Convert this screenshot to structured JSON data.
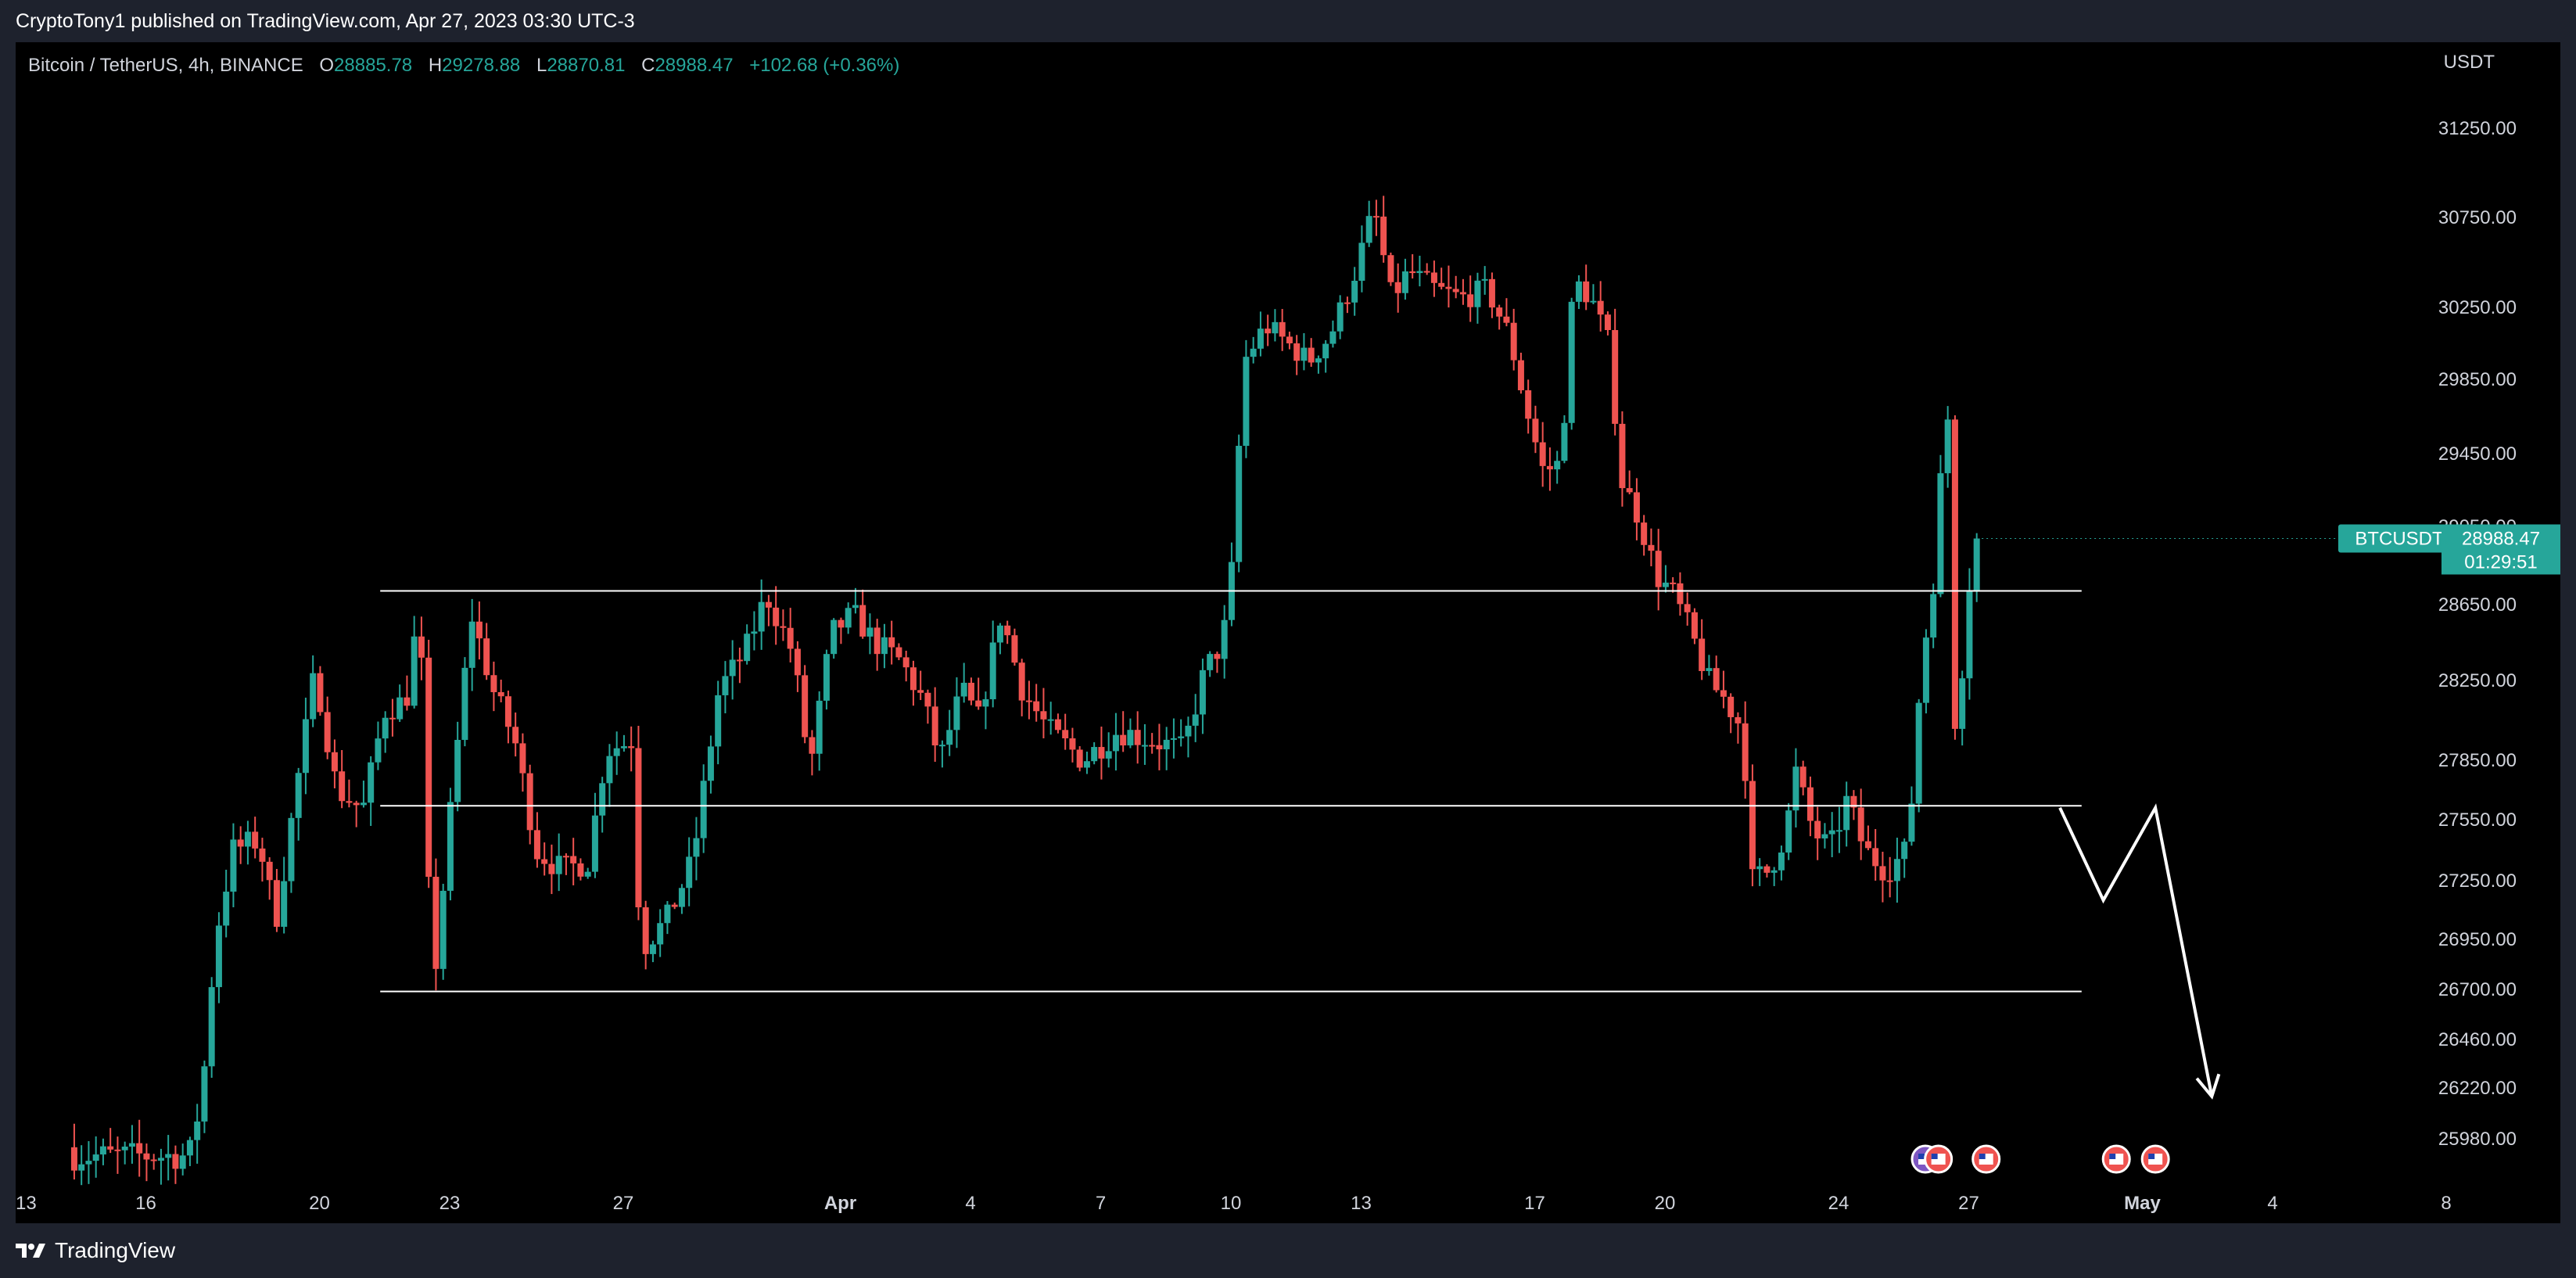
{
  "header": {
    "published_text": "CryptoTony1 published on TradingView.com, Apr 27, 2023 03:30 UTC-3"
  },
  "legend": {
    "symbol": "Bitcoin / TetherUS, 4h, BINANCE",
    "open_label": "O",
    "open": "28885.78",
    "high_label": "H",
    "high": "29278.88",
    "low_label": "L",
    "low": "28870.81",
    "close_label": "C",
    "close": "28988.47",
    "change": "+102.68 (+0.36%)"
  },
  "price_axis": {
    "currency": "USDT"
  },
  "last_price": {
    "symbol_tag": "BTCUSDT",
    "price": "28988.47",
    "countdown": "01:29:51"
  },
  "footer": {
    "brand": "TradingView"
  },
  "colors": {
    "up": "#26a69a",
    "down": "#ef5350",
    "lines": "#ffffff",
    "background": "#000000",
    "frame": "#1e222d"
  },
  "chart_data": {
    "type": "candlestick",
    "timeframe": "4h",
    "y_ticks": [
      31250,
      30750,
      30250,
      29850,
      29450,
      29050,
      28650,
      28250,
      27850,
      27550,
      27250,
      26950,
      26700,
      26460,
      26220,
      25980
    ],
    "y_tick_labels": [
      "31250.00",
      "30750.00",
      "30250.00",
      "29850.00",
      "29450.00",
      "29050.00",
      "28650.00",
      "28250.00",
      "27850.00",
      "27550.00",
      "27250.00",
      "26950.00",
      "26700.00",
      "26460.00",
      "26220.00",
      "25980.00"
    ],
    "x_ticks": [
      {
        "label": "13",
        "day": 13
      },
      {
        "label": "16",
        "day": 16
      },
      {
        "label": "20",
        "day": 20
      },
      {
        "label": "23",
        "day": 23
      },
      {
        "label": "27",
        "day": 27
      },
      {
        "label": "Apr",
        "day": 32,
        "bold": true
      },
      {
        "label": "4",
        "day": 35
      },
      {
        "label": "7",
        "day": 38
      },
      {
        "label": "10",
        "day": 41
      },
      {
        "label": "13",
        "day": 44
      },
      {
        "label": "17",
        "day": 48
      },
      {
        "label": "20",
        "day": 51
      },
      {
        "label": "24",
        "day": 55
      },
      {
        "label": "27",
        "day": 58
      },
      {
        "label": "May",
        "day": 62,
        "bold": true
      },
      {
        "label": "4",
        "day": 65
      },
      {
        "label": "8",
        "day": 69
      }
    ],
    "x_range_days": [
      13,
      71
    ],
    "horizontal_levels": [
      {
        "price": 28720,
        "from_day": 21.4,
        "to_day": 60.6
      },
      {
        "price": 27620,
        "from_day": 21.4,
        "to_day": 60.6
      },
      {
        "price": 26690,
        "from_day": 21.4,
        "to_day": 60.6
      }
    ],
    "projection_path": [
      {
        "day": 60.1,
        "price": 27610
      },
      {
        "day": 61.1,
        "price": 27150
      },
      {
        "day": 62.3,
        "price": 27610
      },
      {
        "day": 63.6,
        "price": 26180
      }
    ],
    "anchors": [
      {
        "day": 13.0,
        "price": 25900
      },
      {
        "day": 14.3,
        "price": 25900
      },
      {
        "day": 17.0,
        "price": 25900
      },
      {
        "day": 17.3,
        "price": 26200
      },
      {
        "day": 17.6,
        "price": 26950
      },
      {
        "day": 18.0,
        "price": 27400
      },
      {
        "day": 18.6,
        "price": 27450
      },
      {
        "day": 19.0,
        "price": 27050
      },
      {
        "day": 19.5,
        "price": 27750
      },
      {
        "day": 19.9,
        "price": 28300
      },
      {
        "day": 20.4,
        "price": 27700
      },
      {
        "day": 21.0,
        "price": 27600
      },
      {
        "day": 21.5,
        "price": 28100
      },
      {
        "day": 22.0,
        "price": 28150
      },
      {
        "day": 22.3,
        "price": 28650
      },
      {
        "day": 22.6,
        "price": 26650
      },
      {
        "day": 23.0,
        "price": 27550
      },
      {
        "day": 23.5,
        "price": 28600
      },
      {
        "day": 24.0,
        "price": 28200
      },
      {
        "day": 24.5,
        "price": 27950
      },
      {
        "day": 25.0,
        "price": 27400
      },
      {
        "day": 25.6,
        "price": 27300
      },
      {
        "day": 26.2,
        "price": 27350
      },
      {
        "day": 26.6,
        "price": 27900
      },
      {
        "day": 27.2,
        "price": 27950
      },
      {
        "day": 27.4,
        "price": 26900
      },
      {
        "day": 28.0,
        "price": 27050
      },
      {
        "day": 28.6,
        "price": 27350
      },
      {
        "day": 29.2,
        "price": 28200
      },
      {
        "day": 29.8,
        "price": 28400
      },
      {
        "day": 30.3,
        "price": 28700
      },
      {
        "day": 30.9,
        "price": 28400
      },
      {
        "day": 31.3,
        "price": 27800
      },
      {
        "day": 31.8,
        "price": 28500
      },
      {
        "day": 32.3,
        "price": 28600
      },
      {
        "day": 32.8,
        "price": 28450
      },
      {
        "day": 33.4,
        "price": 28350
      },
      {
        "day": 33.9,
        "price": 28150
      },
      {
        "day": 34.3,
        "price": 27850
      },
      {
        "day": 34.8,
        "price": 28200
      },
      {
        "day": 35.2,
        "price": 28050
      },
      {
        "day": 35.7,
        "price": 28600
      },
      {
        "day": 36.2,
        "price": 28200
      },
      {
        "day": 36.8,
        "price": 28000
      },
      {
        "day": 37.6,
        "price": 27850
      },
      {
        "day": 38.4,
        "price": 28000
      },
      {
        "day": 39.2,
        "price": 27950
      },
      {
        "day": 39.9,
        "price": 27900
      },
      {
        "day": 40.4,
        "price": 28300
      },
      {
        "day": 40.8,
        "price": 28450
      },
      {
        "day": 41.0,
        "price": 28750
      },
      {
        "day": 41.3,
        "price": 29950
      },
      {
        "day": 41.8,
        "price": 30150
      },
      {
        "day": 42.3,
        "price": 30050
      },
      {
        "day": 42.8,
        "price": 29950
      },
      {
        "day": 43.3,
        "price": 30100
      },
      {
        "day": 43.8,
        "price": 30400
      },
      {
        "day": 44.3,
        "price": 30800
      },
      {
        "day": 44.7,
        "price": 30300
      },
      {
        "day": 45.1,
        "price": 30450
      },
      {
        "day": 45.7,
        "price": 30350
      },
      {
        "day": 46.3,
        "price": 30300
      },
      {
        "day": 46.9,
        "price": 30350
      },
      {
        "day": 47.4,
        "price": 30100
      },
      {
        "day": 47.8,
        "price": 29700
      },
      {
        "day": 48.2,
        "price": 29350
      },
      {
        "day": 48.6,
        "price": 29400
      },
      {
        "day": 48.9,
        "price": 30400
      },
      {
        "day": 49.3,
        "price": 30300
      },
      {
        "day": 49.7,
        "price": 30050
      },
      {
        "day": 50.0,
        "price": 29300
      },
      {
        "day": 50.4,
        "price": 29100
      },
      {
        "day": 50.8,
        "price": 28800
      },
      {
        "day": 51.2,
        "price": 28700
      },
      {
        "day": 51.6,
        "price": 28500
      },
      {
        "day": 52.0,
        "price": 28250
      },
      {
        "day": 52.4,
        "price": 28150
      },
      {
        "day": 52.8,
        "price": 28000
      },
      {
        "day": 53.0,
        "price": 27250
      },
      {
        "day": 53.4,
        "price": 27300
      },
      {
        "day": 53.8,
        "price": 27500
      },
      {
        "day": 54.0,
        "price": 27800
      },
      {
        "day": 54.4,
        "price": 27500
      },
      {
        "day": 54.8,
        "price": 27400
      },
      {
        "day": 55.2,
        "price": 27650
      },
      {
        "day": 55.6,
        "price": 27400
      },
      {
        "day": 56.1,
        "price": 27300
      },
      {
        "day": 56.6,
        "price": 27400
      },
      {
        "day": 56.9,
        "price": 28300
      },
      {
        "day": 57.2,
        "price": 28800
      },
      {
        "day": 57.5,
        "price": 29800
      },
      {
        "day": 57.7,
        "price": 27900
      },
      {
        "day": 58.0,
        "price": 28750
      },
      {
        "day": 58.3,
        "price": 28988
      }
    ],
    "footer_event_icons_days": [
      57.0,
      57.3,
      58.4,
      61.4,
      62.3
    ]
  }
}
